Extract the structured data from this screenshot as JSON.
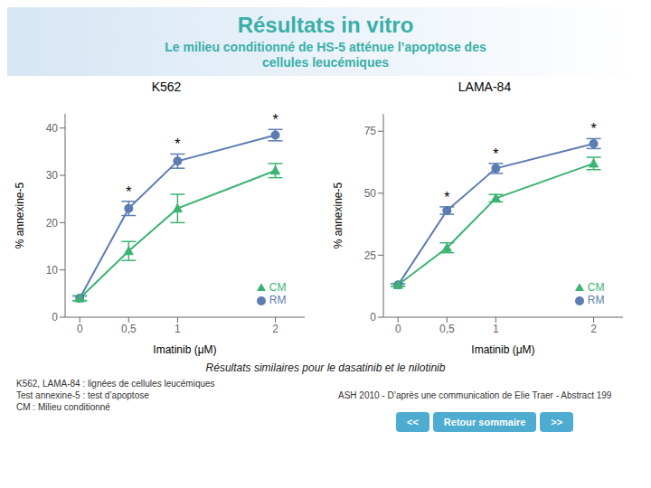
{
  "title": "Résultats in vitro",
  "subtitle": "Le milieu conditionné de HS-5 atténue l’apoptose des\ncellules leucémiques",
  "annotations": [
    "Résultats similaires pour le dasatinib et le nilotinib",
    "K562, LAMA-84 : lignées de cellules leucémiques\nTest annexine-5 : test d’apoptose\nCM : Milieu conditionné",
    "ASH 2010 - D’après une communication de Elie Traer - Abstract 199",
    "<<",
    "Retour sommaire",
    ">>"
  ],
  "chart_data": [
    {
      "type": "line",
      "title": "K562",
      "xlabel": "Imatinib (μM)",
      "ylabel": "% annexine-5",
      "x": [
        0,
        0.5,
        1,
        2
      ],
      "xlim": [
        -0.15,
        2.3
      ],
      "xticks": [
        0,
        {
          "value": 0.5,
          "label": "0,5"
        },
        1,
        2
      ],
      "ylim": [
        0,
        43
      ],
      "yticks": [
        0,
        10,
        20,
        30,
        40
      ],
      "grid": false,
      "legend": "lower right",
      "series": [
        {
          "name": "RM",
          "color": "#5B7DB1",
          "marker": "circle",
          "values": [
            4,
            23,
            33,
            38.5
          ],
          "errors": [
            0.5,
            1.5,
            1.5,
            1.2
          ]
        },
        {
          "name": "CM",
          "color": "#3CB371",
          "marker": "triangle",
          "values": [
            4,
            14,
            23,
            31
          ],
          "errors": [
            0.5,
            2.0,
            3.0,
            1.5
          ]
        }
      ],
      "annotations": [
        {
          "x": 0.5,
          "text": "*"
        },
        {
          "x": 1,
          "text": "*"
        },
        {
          "x": 2,
          "text": "*"
        }
      ]
    },
    {
      "type": "line",
      "title": "LAMA-84",
      "xlabel": "Imatinib (μM)",
      "ylabel": "% annexine-5",
      "x": [
        0,
        0.5,
        1,
        2
      ],
      "xlim": [
        -0.15,
        2.3
      ],
      "xticks": [
        0,
        {
          "value": 0.5,
          "label": "0,5"
        },
        1,
        2
      ],
      "ylim": [
        0,
        82
      ],
      "yticks": [
        0,
        25,
        50,
        75
      ],
      "grid": false,
      "legend": "lower right",
      "series": [
        {
          "name": "RM",
          "color": "#5B7DB1",
          "marker": "circle",
          "values": [
            13,
            43,
            60,
            70
          ],
          "errors": [
            0.5,
            1.5,
            2.0,
            2.0
          ]
        },
        {
          "name": "CM",
          "color": "#3CB371",
          "marker": "triangle",
          "values": [
            13,
            28,
            48,
            62
          ],
          "errors": [
            0.5,
            2.0,
            1.5,
            2.5
          ]
        }
      ],
      "annotations": [
        {
          "x": 0.5,
          "text": "*"
        },
        {
          "x": 1,
          "text": "*"
        },
        {
          "x": 2,
          "text": "*"
        }
      ]
    }
  ]
}
